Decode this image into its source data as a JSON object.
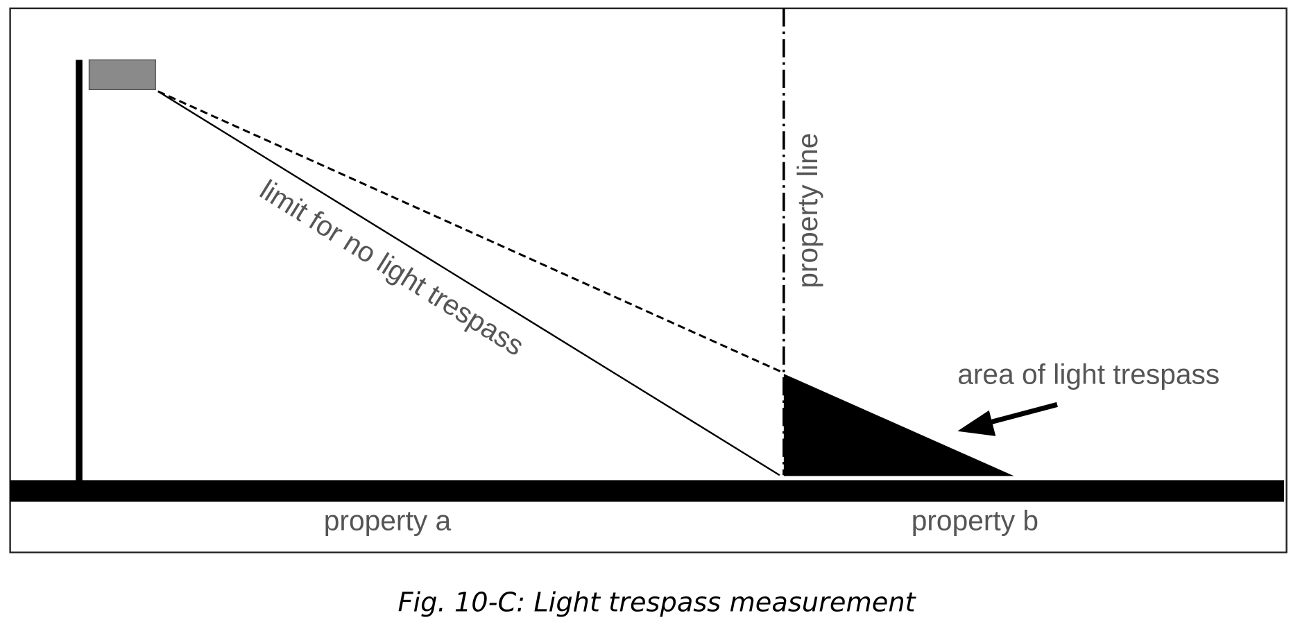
{
  "diagram": {
    "limit_label": "limit for no light trespass",
    "property_line_label": "property line",
    "trespass_label": "area of light trespass",
    "property_a_label": "property a",
    "property_b_label": "property b"
  },
  "caption": "Fig. 10-C: Light trespass measurement",
  "colors": {
    "ink": "#000000",
    "label": "#555555",
    "lamp": "#8a8a8a"
  }
}
